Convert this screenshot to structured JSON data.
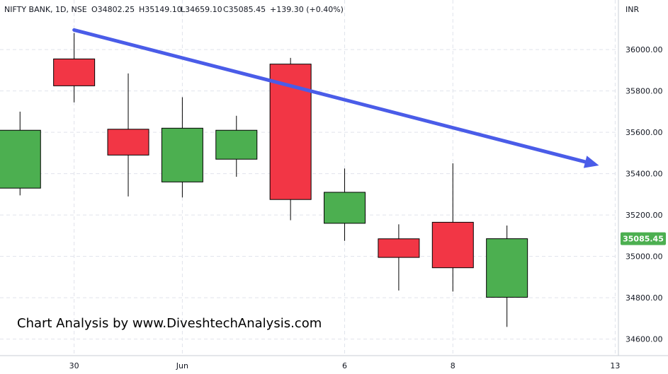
{
  "legend": {
    "symbol": "NIFTY BANK, 1D, NSE",
    "open": "O34802.25",
    "high": "H35149.10",
    "low": "L34659.10",
    "close": "C35085.45",
    "change": "+139.30 (+0.40%)"
  },
  "currency": "INR",
  "watermark": "Chart Analysis by www.DiveshtechAnalysis.com",
  "last_price_label": "35085.45",
  "colors": {
    "up": "#4caf50",
    "down": "#f23645",
    "trendline": "#4a5ce8",
    "grid": "#e0e3eb",
    "last_price": "#4caf50"
  },
  "chart_data": {
    "type": "candlestick",
    "x_tick_labels": [
      {
        "label": "30",
        "index": 1
      },
      {
        "label": "Jun",
        "index": 3
      },
      {
        "label": "6",
        "index": 6
      },
      {
        "label": "8",
        "index": 8
      },
      {
        "label": "13",
        "index": 11
      }
    ],
    "y_ticks": [
      34600,
      34800,
      35000,
      35200,
      35400,
      35600,
      35800,
      36000
    ],
    "y_tick_labels": [
      "34600.00",
      "34800.00",
      "35000.00",
      "35200.00",
      "35400.00",
      "35600.00",
      "35800.00",
      "36000.00"
    ],
    "ylim": [
      34520,
      36240
    ],
    "xlim": [
      -0.37,
      11.06
    ],
    "grid": true,
    "candles": [
      {
        "index": 0,
        "open": 35330,
        "high": 35700,
        "low": 35295,
        "close": 35610
      },
      {
        "index": 1,
        "open": 35955,
        "high": 36080,
        "low": 35745,
        "close": 35825
      },
      {
        "index": 2,
        "open": 35615,
        "high": 35885,
        "low": 35290,
        "close": 35490
      },
      {
        "index": 3,
        "open": 35360,
        "high": 35770,
        "low": 35285,
        "close": 35620
      },
      {
        "index": 4,
        "open": 35470,
        "high": 35680,
        "low": 35385,
        "close": 35610
      },
      {
        "index": 5,
        "open": 35930,
        "high": 35960,
        "low": 35175,
        "close": 35275
      },
      {
        "index": 6,
        "open": 35160,
        "high": 35425,
        "low": 35075,
        "close": 35310
      },
      {
        "index": 7,
        "open": 35085,
        "high": 35155,
        "low": 34835,
        "close": 34995
      },
      {
        "index": 8,
        "open": 35165,
        "high": 35450,
        "low": 34830,
        "close": 34945
      },
      {
        "index": 9,
        "open": 34802.25,
        "high": 35149.1,
        "low": 34659.1,
        "close": 35085.45
      }
    ],
    "trendline": {
      "x1": 1,
      "y1": 36095,
      "x2": 10.7,
      "y2": 35440
    },
    "last_price": 35085.45
  }
}
